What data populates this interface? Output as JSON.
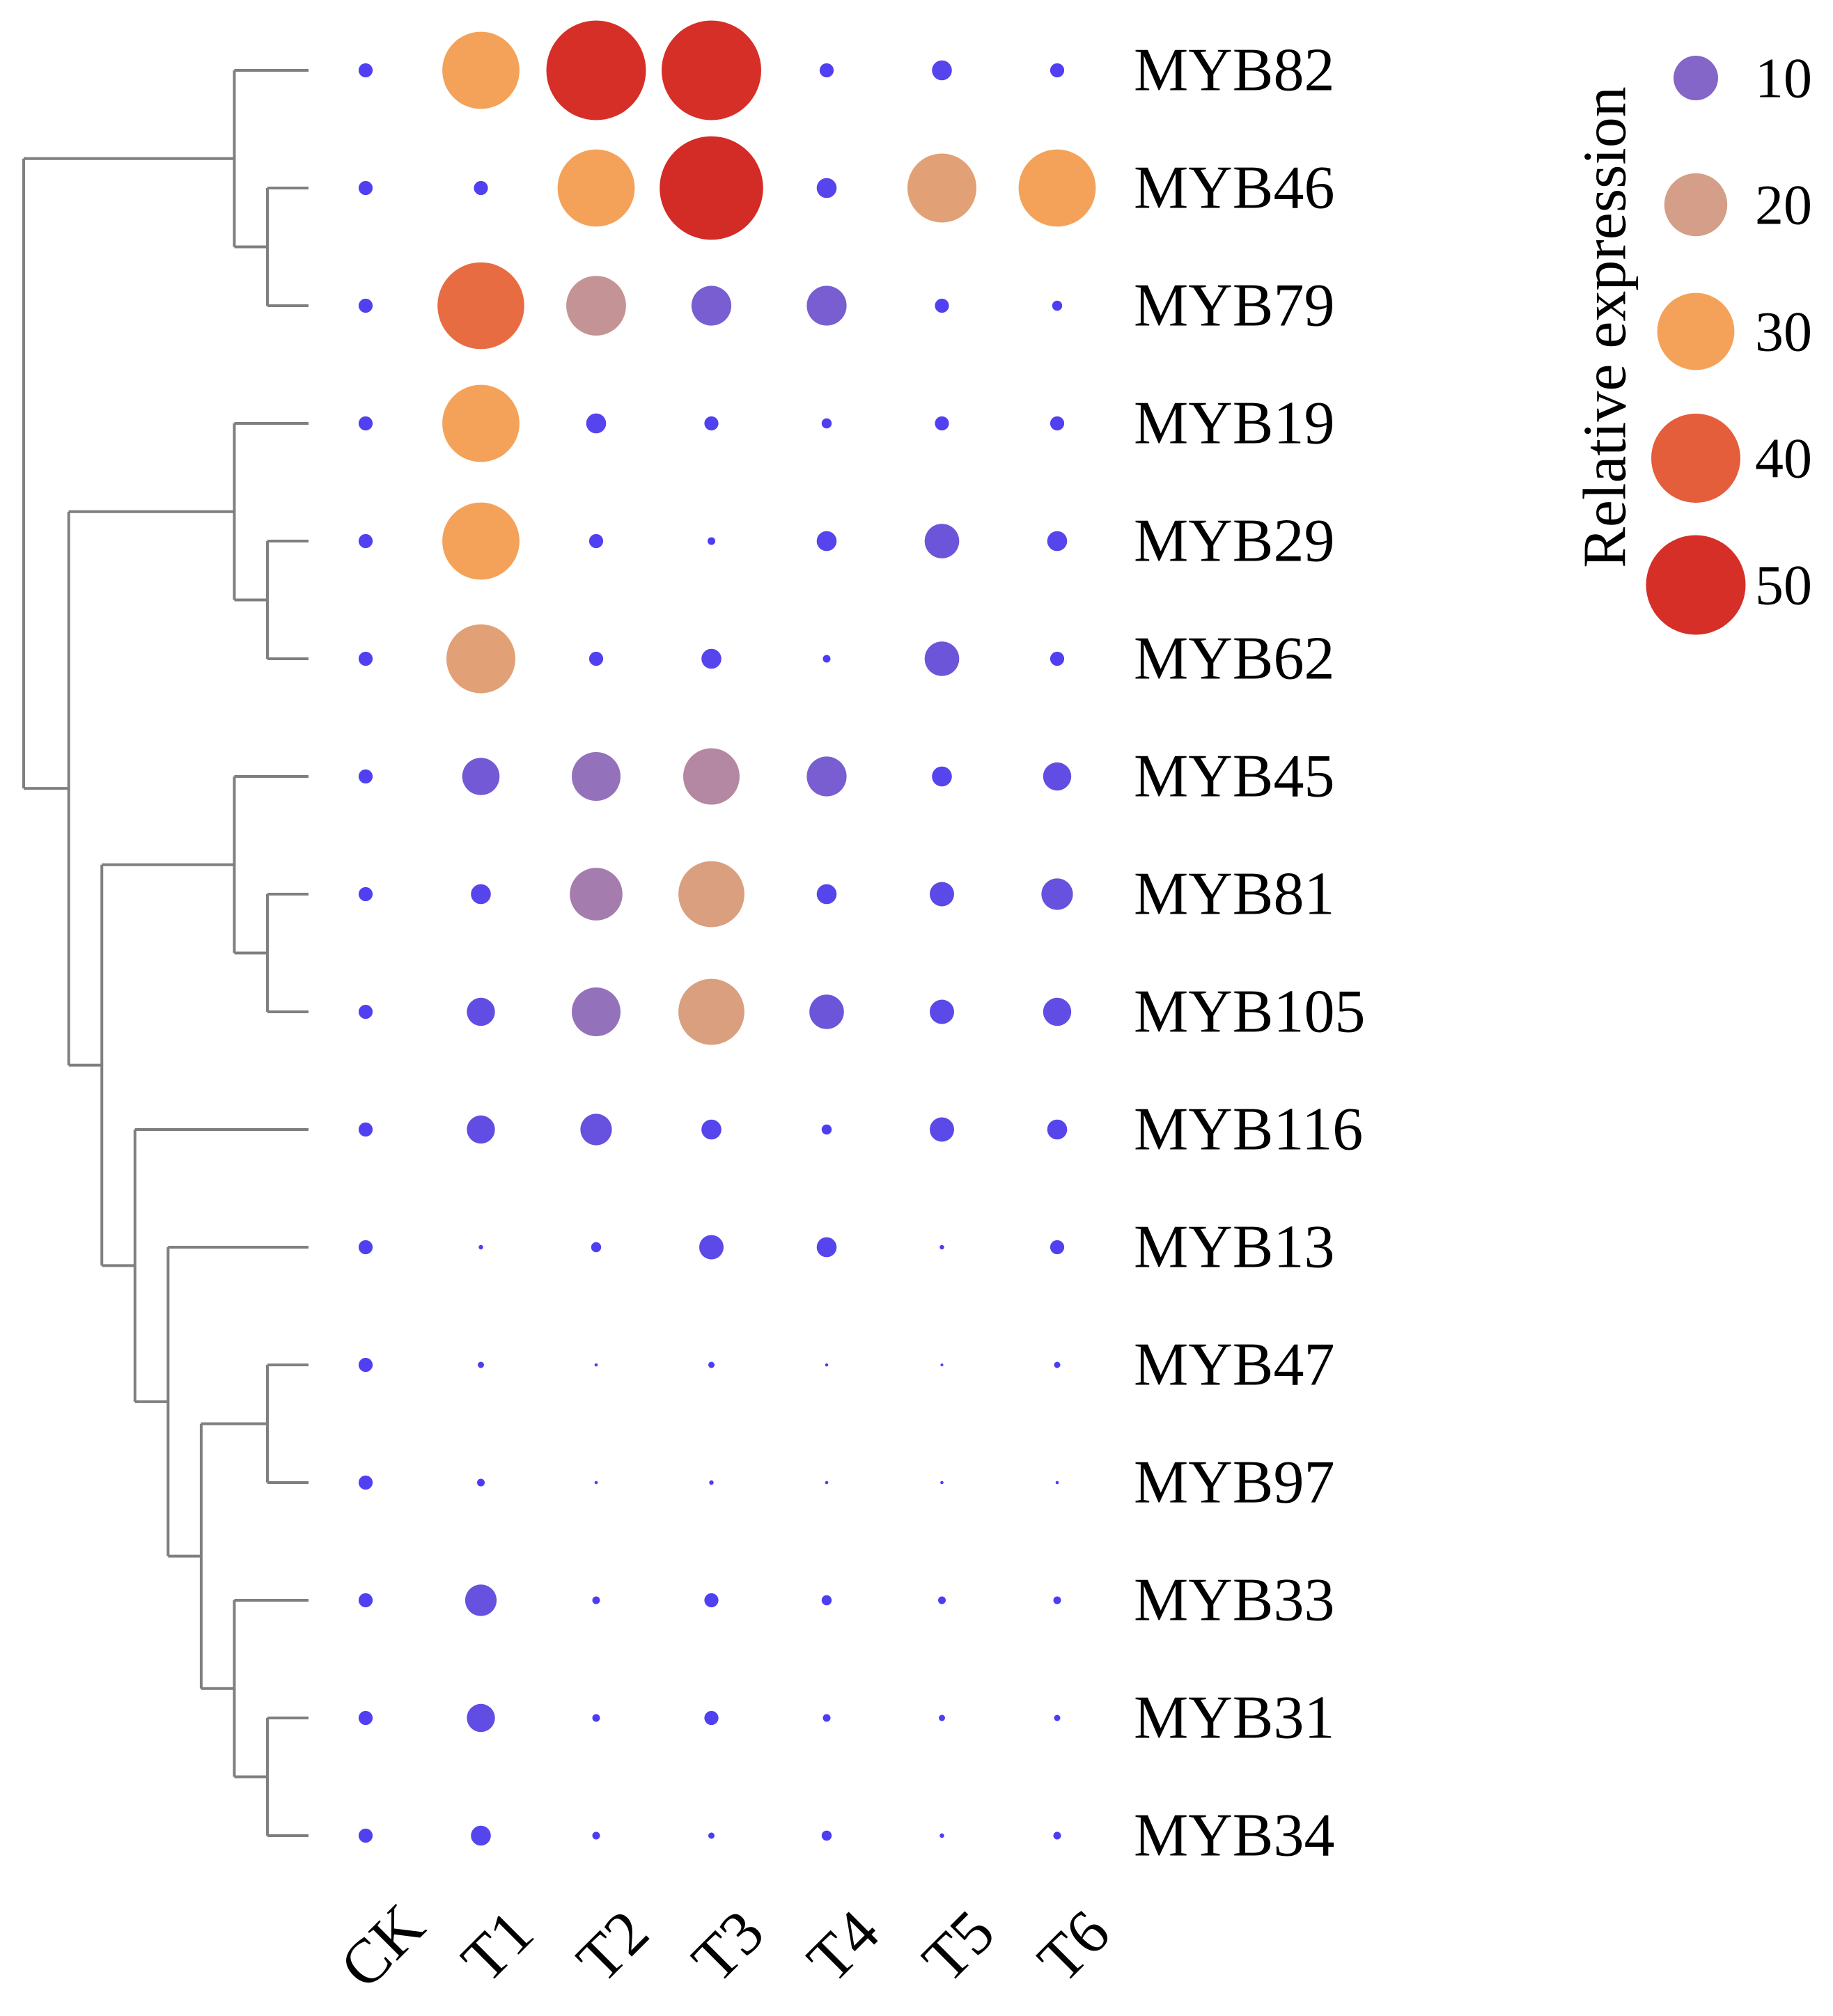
{
  "chart_data": {
    "type": "bubble-heatmap",
    "title": "",
    "columns": [
      "CK",
      "T1",
      "T2",
      "T3",
      "T4",
      "T5",
      "T6"
    ],
    "rows": [
      "MYB82",
      "MYB46",
      "MYB79",
      "MYB19",
      "MYB29",
      "MYB62",
      "MYB45",
      "MYB81",
      "MYB105",
      "MYB116",
      "MYB13",
      "MYB47",
      "MYB97",
      "MYB33",
      "MYB31",
      "MYB34"
    ],
    "values": [
      [
        1,
        30,
        50,
        50,
        1,
        2,
        1
      ],
      [
        1,
        1,
        30,
        54,
        2,
        24,
        30
      ],
      [
        1,
        38,
        18,
        8,
        8,
        1,
        0.5
      ],
      [
        1,
        30,
        2,
        1,
        0.5,
        1,
        1
      ],
      [
        1,
        30,
        1,
        0.3,
        2,
        6,
        2
      ],
      [
        1,
        24,
        1,
        2,
        0.3,
        6,
        1
      ],
      [
        1,
        7,
        12,
        16,
        8,
        2,
        4
      ],
      [
        1,
        2,
        14,
        22,
        2,
        3,
        5
      ],
      [
        1,
        4,
        12,
        22,
        6,
        3,
        4
      ],
      [
        1,
        4,
        5,
        2,
        0.5,
        3,
        2
      ],
      [
        1,
        0.1,
        0.5,
        3,
        2,
        0.1,
        1
      ],
      [
        1,
        0.2,
        0.05,
        0.2,
        0.05,
        0.02,
        0.2
      ],
      [
        1,
        0.3,
        0.05,
        0.1,
        0.05,
        0.05,
        0.05
      ],
      [
        1,
        5,
        0.3,
        1,
        0.5,
        0.3,
        0.3
      ],
      [
        1,
        4,
        0.3,
        1,
        0.3,
        0.2,
        0.2
      ],
      [
        1,
        2,
        0.3,
        0.2,
        0.5,
        0.1,
        0.3
      ]
    ],
    "legend": {
      "title": "Relative expression",
      "levels": [
        10,
        20,
        30,
        40,
        50
      ],
      "placement": "top-right"
    },
    "color_scale": {
      "stops": [
        {
          "value": 0,
          "color": "#4a3cf5"
        },
        {
          "value": 10,
          "color": "#8466c8"
        },
        {
          "value": 20,
          "color": "#d49e88"
        },
        {
          "value": 30,
          "color": "#f4a259"
        },
        {
          "value": 40,
          "color": "#e55e3c"
        },
        {
          "value": 50,
          "color": "#d52f28"
        },
        {
          "value": 55,
          "color": "#d32a26"
        }
      ]
    },
    "dendrogram": {
      "tree": [
        [
          [
            0,
            [
              1,
              2
            ]
          ],
          [
            [
              3,
              [
                4,
                5
              ]
            ],
            [
              [
                6,
                [
                  7,
                  8
                ]
              ],
              [
                9,
                [
                  10,
                  [
                    [
                      11,
                      12
                    ],
                    [
                      13,
                      [
                        14,
                        15
                      ]
                    ]
                  ]
                ]
              ]
            ]
          ]
        ]
      ]
    }
  }
}
